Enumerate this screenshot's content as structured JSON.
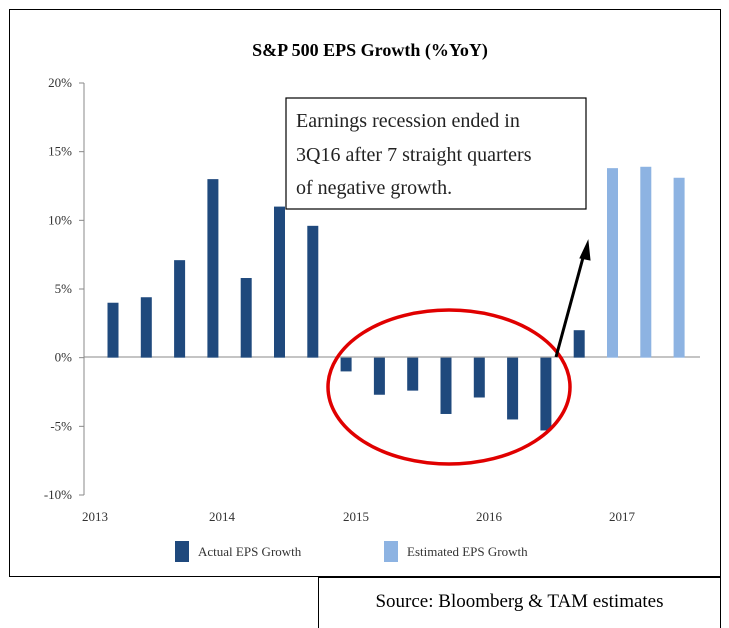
{
  "chart_data": {
    "type": "bar",
    "title": "S&P 500 EPS Growth (%YoY)",
    "xlabel": "",
    "ylabel": "",
    "ylim": [
      -10,
      20
    ],
    "y_ticks": [
      "20%",
      "15%",
      "10%",
      "5%",
      "0%",
      "-5%",
      "-10%"
    ],
    "y_tick_values": [
      20,
      15,
      10,
      5,
      0,
      -5,
      -10
    ],
    "x_ticks": [
      "2013",
      "2014",
      "2015",
      "2016",
      "2017"
    ],
    "grid": false,
    "legend_position": "bottom",
    "series": [
      {
        "name": "Actual EPS Growth",
        "color": "#1f497d",
        "values": [
          4.0,
          4.4,
          7.1,
          13.0,
          5.8,
          11.0,
          9.6,
          -1.0,
          -2.7,
          -2.4,
          -4.1,
          -2.9,
          -4.5,
          -5.3,
          2.0,
          null,
          null,
          null
        ]
      },
      {
        "name": "Estimated EPS Growth",
        "color": "#8db3e2",
        "values": [
          null,
          null,
          null,
          null,
          null,
          null,
          null,
          null,
          null,
          null,
          null,
          null,
          null,
          null,
          null,
          13.8,
          13.9,
          13.1
        ]
      }
    ],
    "annotations": [
      "Earnings recession ended in",
      "3Q16 after 7 straight quarters",
      "of negative growth."
    ],
    "highlight_color": "#e00000"
  },
  "source": "Source: Bloomberg & TAM estimates"
}
